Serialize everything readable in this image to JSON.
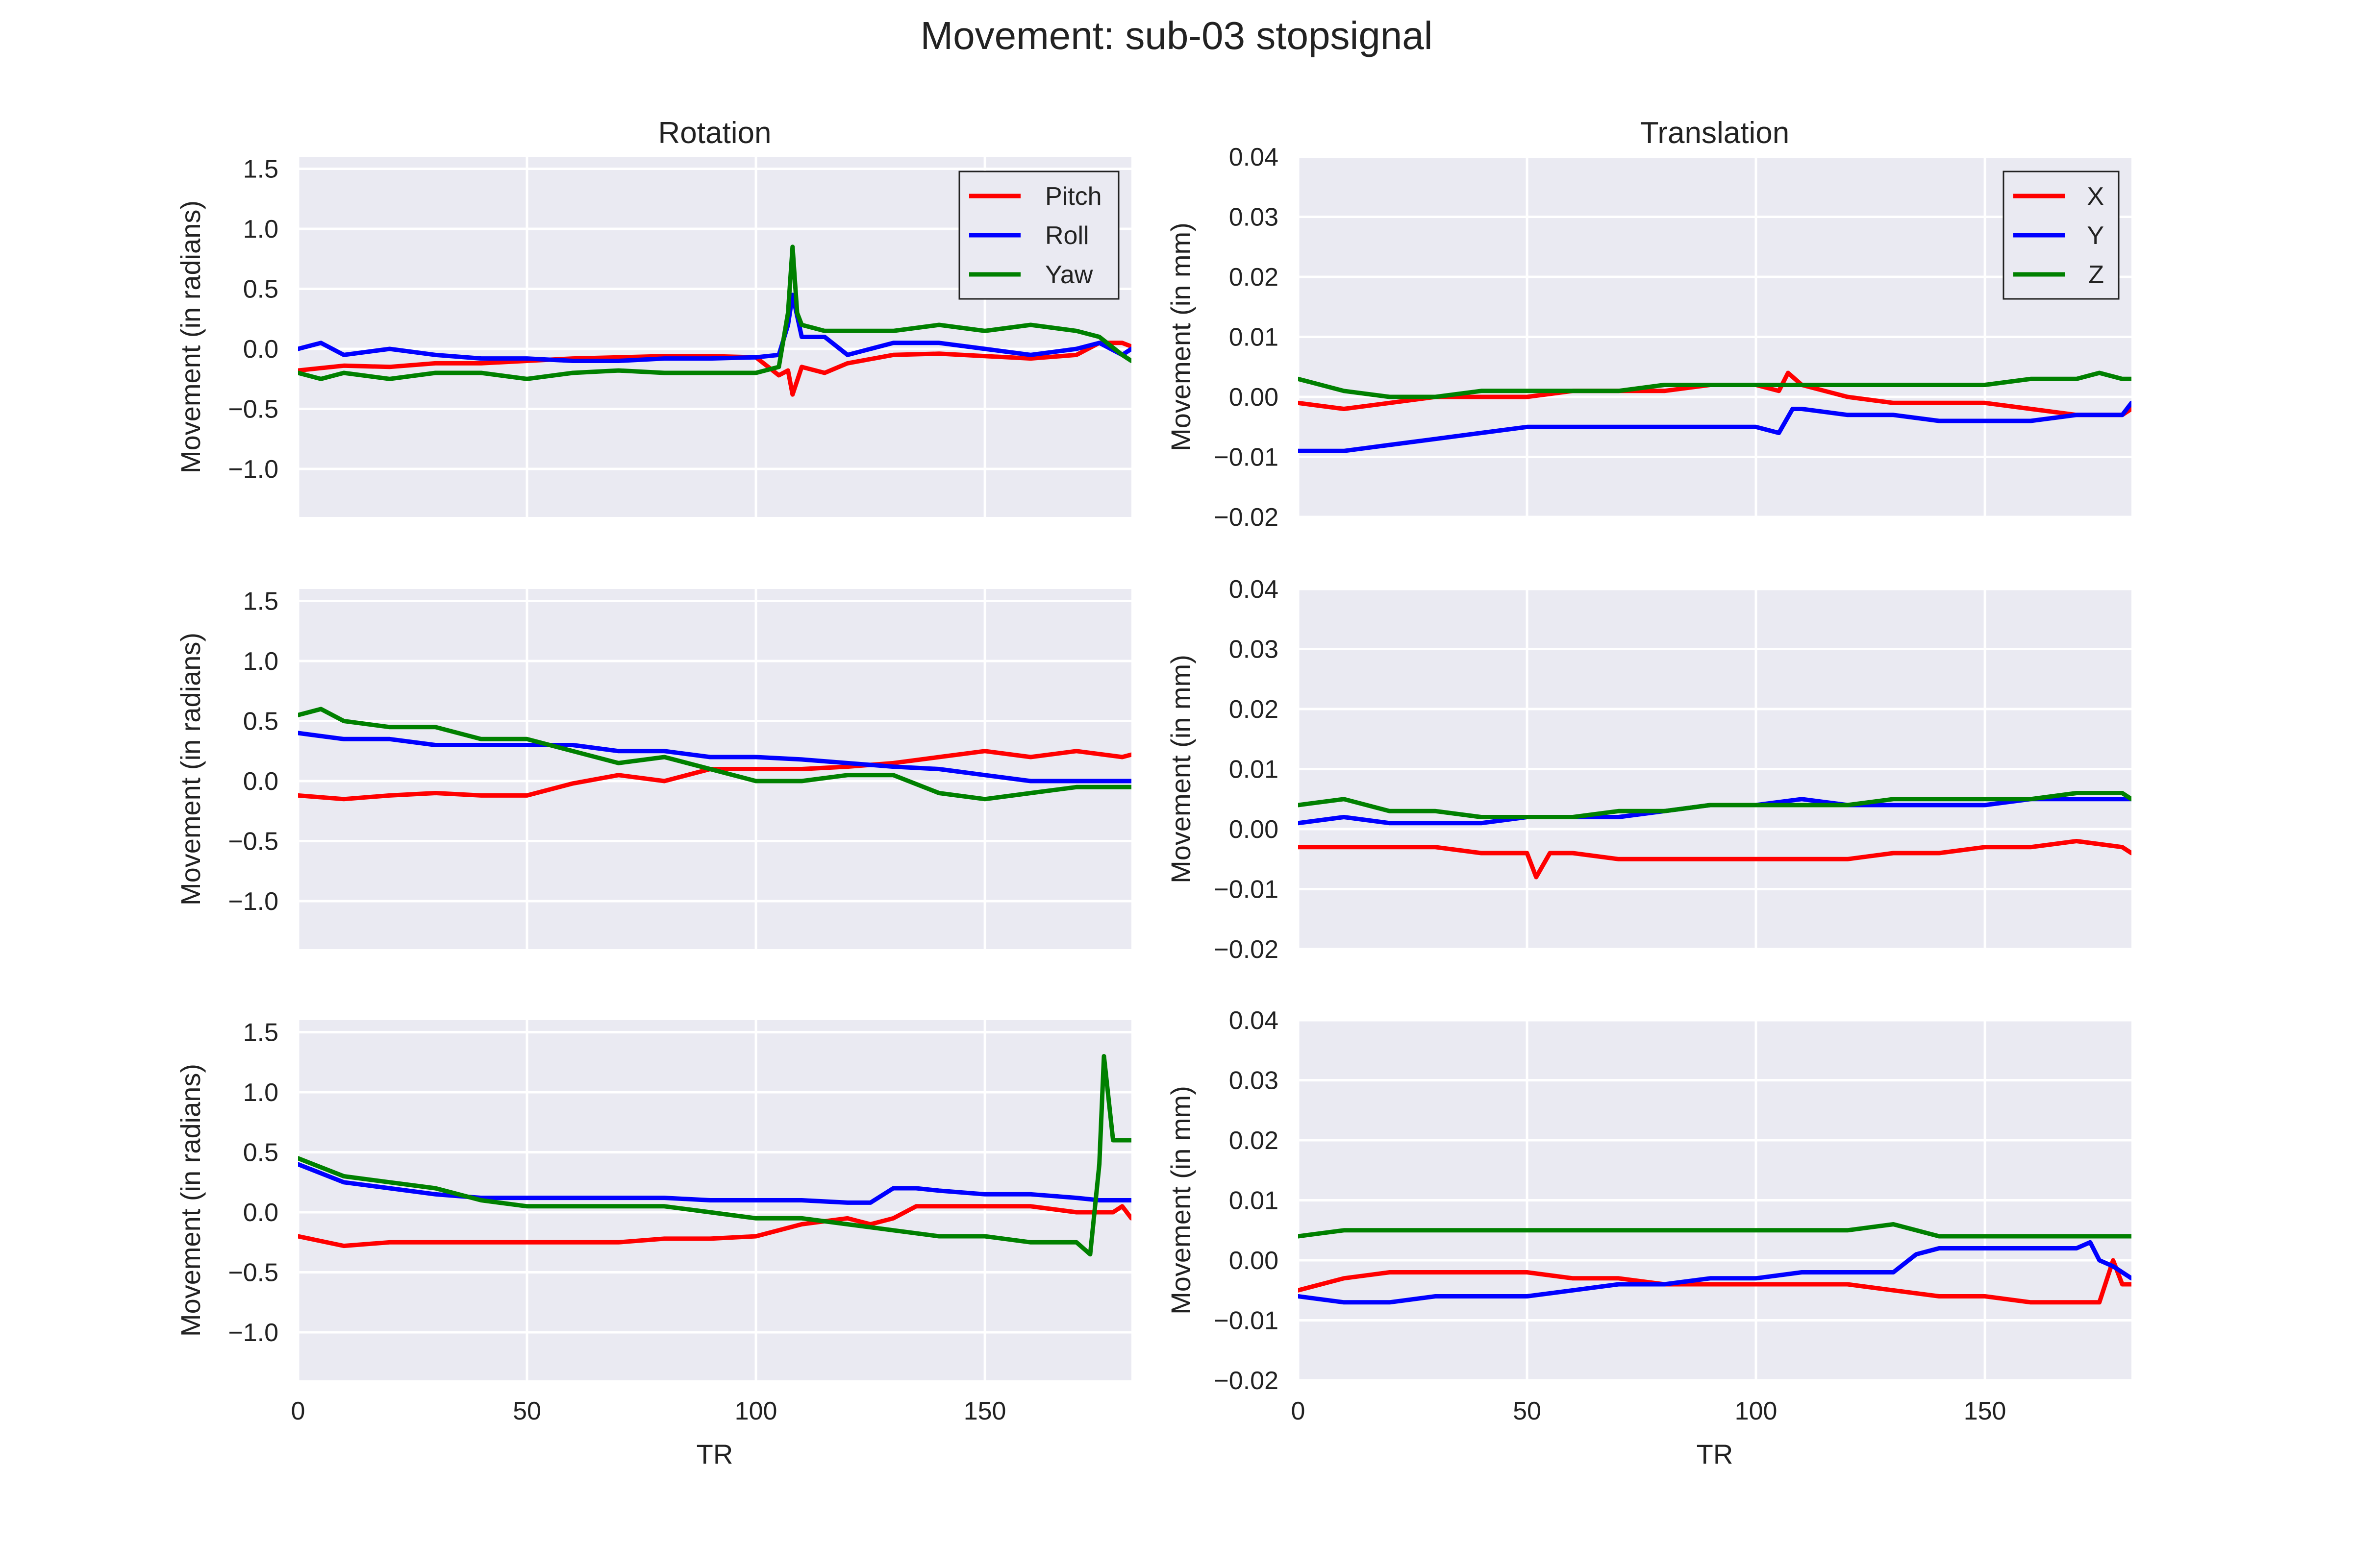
{
  "title": "Movement: sub-03 stopsignal",
  "colors": {
    "background": "#eaeaf2",
    "grid": "#ffffff",
    "red": "#ff0000",
    "blue": "#0000ff",
    "green": "#008000"
  },
  "chart_data": [
    {
      "type": "line",
      "panel": "rotation-1",
      "title": "Rotation",
      "xlabel": "",
      "ylabel": "Movement (in radians)",
      "xlim": [
        0,
        182
      ],
      "ylim": [
        -1.4,
        1.6
      ],
      "xticks": [
        0,
        50,
        100,
        150
      ],
      "yticks": [
        -1.0,
        -0.5,
        0.0,
        0.5,
        1.0,
        1.5
      ],
      "grid": true,
      "legend": "top-right",
      "series": [
        {
          "name": "Pitch",
          "color": "red",
          "x": [
            0,
            10,
            20,
            30,
            40,
            50,
            60,
            70,
            80,
            90,
            100,
            105,
            107,
            108,
            110,
            115,
            120,
            130,
            140,
            150,
            160,
            170,
            175,
            180,
            182
          ],
          "y": [
            -0.18,
            -0.14,
            -0.15,
            -0.12,
            -0.12,
            -0.1,
            -0.08,
            -0.07,
            -0.06,
            -0.06,
            -0.07,
            -0.22,
            -0.18,
            -0.38,
            -0.15,
            -0.2,
            -0.12,
            -0.05,
            -0.04,
            -0.06,
            -0.08,
            -0.05,
            0.05,
            0.05,
            0.02
          ]
        },
        {
          "name": "Roll",
          "color": "blue",
          "x": [
            0,
            5,
            10,
            20,
            30,
            40,
            50,
            60,
            70,
            80,
            90,
            100,
            105,
            107,
            108,
            110,
            115,
            120,
            130,
            140,
            150,
            160,
            170,
            175,
            180,
            182
          ],
          "y": [
            0.0,
            0.05,
            -0.05,
            0.0,
            -0.05,
            -0.08,
            -0.08,
            -0.1,
            -0.1,
            -0.08,
            -0.08,
            -0.07,
            -0.05,
            0.2,
            0.45,
            0.1,
            0.1,
            -0.05,
            0.05,
            0.05,
            0.0,
            -0.05,
            0.0,
            0.05,
            -0.05,
            0.0
          ]
        },
        {
          "name": "Yaw",
          "color": "green",
          "x": [
            0,
            5,
            10,
            20,
            30,
            40,
            50,
            60,
            70,
            80,
            90,
            100,
            105,
            107,
            108,
            109,
            110,
            115,
            120,
            130,
            140,
            150,
            160,
            170,
            175,
            180,
            182
          ],
          "y": [
            -0.2,
            -0.25,
            -0.2,
            -0.25,
            -0.2,
            -0.2,
            -0.25,
            -0.2,
            -0.18,
            -0.2,
            -0.2,
            -0.2,
            -0.15,
            0.3,
            0.85,
            0.3,
            0.2,
            0.15,
            0.15,
            0.15,
            0.2,
            0.15,
            0.2,
            0.15,
            0.1,
            -0.05,
            -0.1
          ]
        }
      ]
    },
    {
      "type": "line",
      "panel": "translation-1",
      "title": "Translation",
      "xlabel": "",
      "ylabel": "Movement (in mm)",
      "xlim": [
        0,
        182
      ],
      "ylim": [
        -0.02,
        0.04
      ],
      "xticks": [
        0,
        50,
        100,
        150
      ],
      "yticks": [
        -0.02,
        -0.01,
        0.0,
        0.01,
        0.02,
        0.03,
        0.04
      ],
      "grid": true,
      "legend": "top-right",
      "series": [
        {
          "name": "X",
          "color": "red",
          "x": [
            0,
            10,
            20,
            30,
            40,
            50,
            60,
            70,
            80,
            90,
            100,
            105,
            107,
            110,
            115,
            120,
            130,
            140,
            150,
            160,
            170,
            180,
            182
          ],
          "y": [
            -0.001,
            -0.002,
            -0.001,
            0.0,
            0.0,
            0.0,
            0.001,
            0.001,
            0.001,
            0.002,
            0.002,
            0.001,
            0.004,
            0.002,
            0.001,
            0.0,
            -0.001,
            -0.001,
            -0.001,
            -0.002,
            -0.003,
            -0.003,
            -0.002
          ]
        },
        {
          "name": "Y",
          "color": "blue",
          "x": [
            0,
            10,
            20,
            30,
            40,
            50,
            60,
            70,
            80,
            90,
            100,
            105,
            108,
            110,
            120,
            130,
            140,
            150,
            160,
            170,
            175,
            180,
            182
          ],
          "y": [
            -0.009,
            -0.009,
            -0.008,
            -0.007,
            -0.006,
            -0.005,
            -0.005,
            -0.005,
            -0.005,
            -0.005,
            -0.005,
            -0.006,
            -0.002,
            -0.002,
            -0.003,
            -0.003,
            -0.004,
            -0.004,
            -0.004,
            -0.003,
            -0.003,
            -0.003,
            -0.001
          ]
        },
        {
          "name": "Z",
          "color": "green",
          "x": [
            0,
            10,
            20,
            30,
            40,
            50,
            60,
            70,
            80,
            90,
            100,
            110,
            120,
            130,
            140,
            150,
            160,
            170,
            175,
            180,
            182
          ],
          "y": [
            0.003,
            0.001,
            0.0,
            0.0,
            0.001,
            0.001,
            0.001,
            0.001,
            0.002,
            0.002,
            0.002,
            0.002,
            0.002,
            0.002,
            0.002,
            0.002,
            0.003,
            0.003,
            0.004,
            0.003,
            0.003
          ]
        }
      ]
    },
    {
      "type": "line",
      "panel": "rotation-2",
      "title": "",
      "xlabel": "",
      "ylabel": "Movement (in radians)",
      "xlim": [
        0,
        182
      ],
      "ylim": [
        -1.4,
        1.6
      ],
      "xticks": [
        0,
        50,
        100,
        150
      ],
      "yticks": [
        -1.0,
        -0.5,
        0.0,
        0.5,
        1.0,
        1.5
      ],
      "grid": true,
      "series": [
        {
          "name": "Pitch",
          "color": "red",
          "x": [
            0,
            10,
            20,
            30,
            40,
            50,
            60,
            70,
            80,
            90,
            100,
            110,
            120,
            130,
            140,
            150,
            160,
            170,
            180,
            182
          ],
          "y": [
            -0.12,
            -0.15,
            -0.12,
            -0.1,
            -0.12,
            -0.12,
            -0.02,
            0.05,
            0.0,
            0.1,
            0.1,
            0.1,
            0.12,
            0.15,
            0.2,
            0.25,
            0.2,
            0.25,
            0.2,
            0.22
          ]
        },
        {
          "name": "Roll",
          "color": "blue",
          "x": [
            0,
            10,
            20,
            30,
            40,
            50,
            60,
            70,
            80,
            90,
            100,
            110,
            120,
            130,
            140,
            150,
            160,
            170,
            180,
            182
          ],
          "y": [
            0.4,
            0.35,
            0.35,
            0.3,
            0.3,
            0.3,
            0.3,
            0.25,
            0.25,
            0.2,
            0.2,
            0.18,
            0.15,
            0.12,
            0.1,
            0.05,
            0.0,
            0.0,
            0.0,
            0.0
          ]
        },
        {
          "name": "Yaw",
          "color": "green",
          "x": [
            0,
            5,
            10,
            20,
            30,
            40,
            50,
            60,
            70,
            80,
            90,
            100,
            110,
            120,
            130,
            140,
            150,
            160,
            170,
            180,
            182
          ],
          "y": [
            0.55,
            0.6,
            0.5,
            0.45,
            0.45,
            0.35,
            0.35,
            0.25,
            0.15,
            0.2,
            0.1,
            0.0,
            0.0,
            0.05,
            0.05,
            -0.1,
            -0.15,
            -0.1,
            -0.05,
            -0.05,
            -0.05
          ]
        }
      ]
    },
    {
      "type": "line",
      "panel": "translation-2",
      "title": "",
      "xlabel": "",
      "ylabel": "Movement (in mm)",
      "xlim": [
        0,
        182
      ],
      "ylim": [
        -0.02,
        0.04
      ],
      "xticks": [
        0,
        50,
        100,
        150
      ],
      "yticks": [
        -0.02,
        -0.01,
        0.0,
        0.01,
        0.02,
        0.03,
        0.04
      ],
      "grid": true,
      "series": [
        {
          "name": "X",
          "color": "red",
          "x": [
            0,
            10,
            20,
            30,
            40,
            50,
            52,
            55,
            60,
            70,
            80,
            90,
            100,
            110,
            120,
            130,
            140,
            150,
            160,
            170,
            180,
            182
          ],
          "y": [
            -0.003,
            -0.003,
            -0.003,
            -0.003,
            -0.004,
            -0.004,
            -0.008,
            -0.004,
            -0.004,
            -0.005,
            -0.005,
            -0.005,
            -0.005,
            -0.005,
            -0.005,
            -0.004,
            -0.004,
            -0.003,
            -0.003,
            -0.002,
            -0.003,
            -0.004
          ]
        },
        {
          "name": "Y",
          "color": "blue",
          "x": [
            0,
            10,
            20,
            30,
            40,
            50,
            60,
            70,
            80,
            90,
            100,
            110,
            120,
            130,
            140,
            150,
            160,
            170,
            180,
            182
          ],
          "y": [
            0.001,
            0.002,
            0.001,
            0.001,
            0.001,
            0.002,
            0.002,
            0.002,
            0.003,
            0.004,
            0.004,
            0.005,
            0.004,
            0.004,
            0.004,
            0.004,
            0.005,
            0.005,
            0.005,
            0.005
          ]
        },
        {
          "name": "Z",
          "color": "green",
          "x": [
            0,
            10,
            20,
            30,
            40,
            50,
            60,
            70,
            80,
            90,
            100,
            110,
            120,
            130,
            140,
            150,
            160,
            170,
            180,
            182
          ],
          "y": [
            0.004,
            0.005,
            0.003,
            0.003,
            0.002,
            0.002,
            0.002,
            0.003,
            0.003,
            0.004,
            0.004,
            0.004,
            0.004,
            0.005,
            0.005,
            0.005,
            0.005,
            0.006,
            0.006,
            0.005
          ]
        }
      ]
    },
    {
      "type": "line",
      "panel": "rotation-3",
      "title": "",
      "xlabel": "TR",
      "ylabel": "Movement (in radians)",
      "xlim": [
        0,
        182
      ],
      "ylim": [
        -1.4,
        1.6
      ],
      "xticks": [
        0,
        50,
        100,
        150
      ],
      "yticks": [
        -1.0,
        -0.5,
        0.0,
        0.5,
        1.0,
        1.5
      ],
      "grid": true,
      "series": [
        {
          "name": "Pitch",
          "color": "red",
          "x": [
            0,
            10,
            20,
            30,
            40,
            50,
            60,
            70,
            80,
            90,
            100,
            110,
            120,
            125,
            130,
            135,
            140,
            150,
            160,
            170,
            175,
            178,
            180,
            182
          ],
          "y": [
            -0.2,
            -0.28,
            -0.25,
            -0.25,
            -0.25,
            -0.25,
            -0.25,
            -0.25,
            -0.22,
            -0.22,
            -0.2,
            -0.1,
            -0.05,
            -0.1,
            -0.05,
            0.05,
            0.05,
            0.05,
            0.05,
            0.0,
            0.0,
            0.0,
            0.05,
            -0.05
          ]
        },
        {
          "name": "Roll",
          "color": "blue",
          "x": [
            0,
            10,
            20,
            30,
            40,
            50,
            60,
            70,
            80,
            90,
            100,
            110,
            120,
            125,
            130,
            135,
            140,
            150,
            160,
            170,
            175,
            180,
            182
          ],
          "y": [
            0.4,
            0.25,
            0.2,
            0.15,
            0.12,
            0.12,
            0.12,
            0.12,
            0.12,
            0.1,
            0.1,
            0.1,
            0.08,
            0.08,
            0.2,
            0.2,
            0.18,
            0.15,
            0.15,
            0.12,
            0.1,
            0.1,
            0.1
          ]
        },
        {
          "name": "Yaw",
          "color": "green",
          "x": [
            0,
            10,
            20,
            30,
            40,
            50,
            60,
            70,
            80,
            90,
            100,
            110,
            120,
            130,
            140,
            150,
            160,
            170,
            173,
            175,
            176,
            178,
            180,
            182
          ],
          "y": [
            0.45,
            0.3,
            0.25,
            0.2,
            0.1,
            0.05,
            0.05,
            0.05,
            0.05,
            0.0,
            -0.05,
            -0.05,
            -0.1,
            -0.15,
            -0.2,
            -0.2,
            -0.25,
            -0.25,
            -0.35,
            0.4,
            1.3,
            0.6,
            0.6,
            0.6
          ]
        }
      ]
    },
    {
      "type": "line",
      "panel": "translation-3",
      "title": "",
      "xlabel": "TR",
      "ylabel": "Movement (in mm)",
      "xlim": [
        0,
        182
      ],
      "ylim": [
        -0.02,
        0.04
      ],
      "xticks": [
        0,
        50,
        100,
        150
      ],
      "yticks": [
        -0.02,
        -0.01,
        0.0,
        0.01,
        0.02,
        0.03,
        0.04
      ],
      "grid": true,
      "series": [
        {
          "name": "X",
          "color": "red",
          "x": [
            0,
            10,
            20,
            30,
            40,
            50,
            60,
            70,
            80,
            90,
            100,
            110,
            120,
            130,
            140,
            150,
            160,
            170,
            175,
            178,
            180,
            182
          ],
          "y": [
            -0.005,
            -0.003,
            -0.002,
            -0.002,
            -0.002,
            -0.002,
            -0.003,
            -0.003,
            -0.004,
            -0.004,
            -0.004,
            -0.004,
            -0.004,
            -0.005,
            -0.006,
            -0.006,
            -0.007,
            -0.007,
            -0.007,
            0.0,
            -0.004,
            -0.004
          ]
        },
        {
          "name": "Y",
          "color": "blue",
          "x": [
            0,
            10,
            20,
            30,
            40,
            50,
            60,
            70,
            80,
            90,
            100,
            110,
            120,
            130,
            135,
            140,
            150,
            160,
            170,
            173,
            175,
            178,
            180,
            182
          ],
          "y": [
            -0.006,
            -0.007,
            -0.007,
            -0.006,
            -0.006,
            -0.006,
            -0.005,
            -0.004,
            -0.004,
            -0.003,
            -0.003,
            -0.002,
            -0.002,
            -0.002,
            0.001,
            0.002,
            0.002,
            0.002,
            0.002,
            0.003,
            0.0,
            -0.001,
            -0.002,
            -0.003
          ]
        },
        {
          "name": "Z",
          "color": "green",
          "x": [
            0,
            10,
            20,
            30,
            40,
            50,
            60,
            70,
            80,
            90,
            100,
            110,
            120,
            130,
            140,
            150,
            160,
            170,
            180,
            182
          ],
          "y": [
            0.004,
            0.005,
            0.005,
            0.005,
            0.005,
            0.005,
            0.005,
            0.005,
            0.005,
            0.005,
            0.005,
            0.005,
            0.005,
            0.006,
            0.004,
            0.004,
            0.004,
            0.004,
            0.004,
            0.004
          ]
        }
      ]
    }
  ]
}
